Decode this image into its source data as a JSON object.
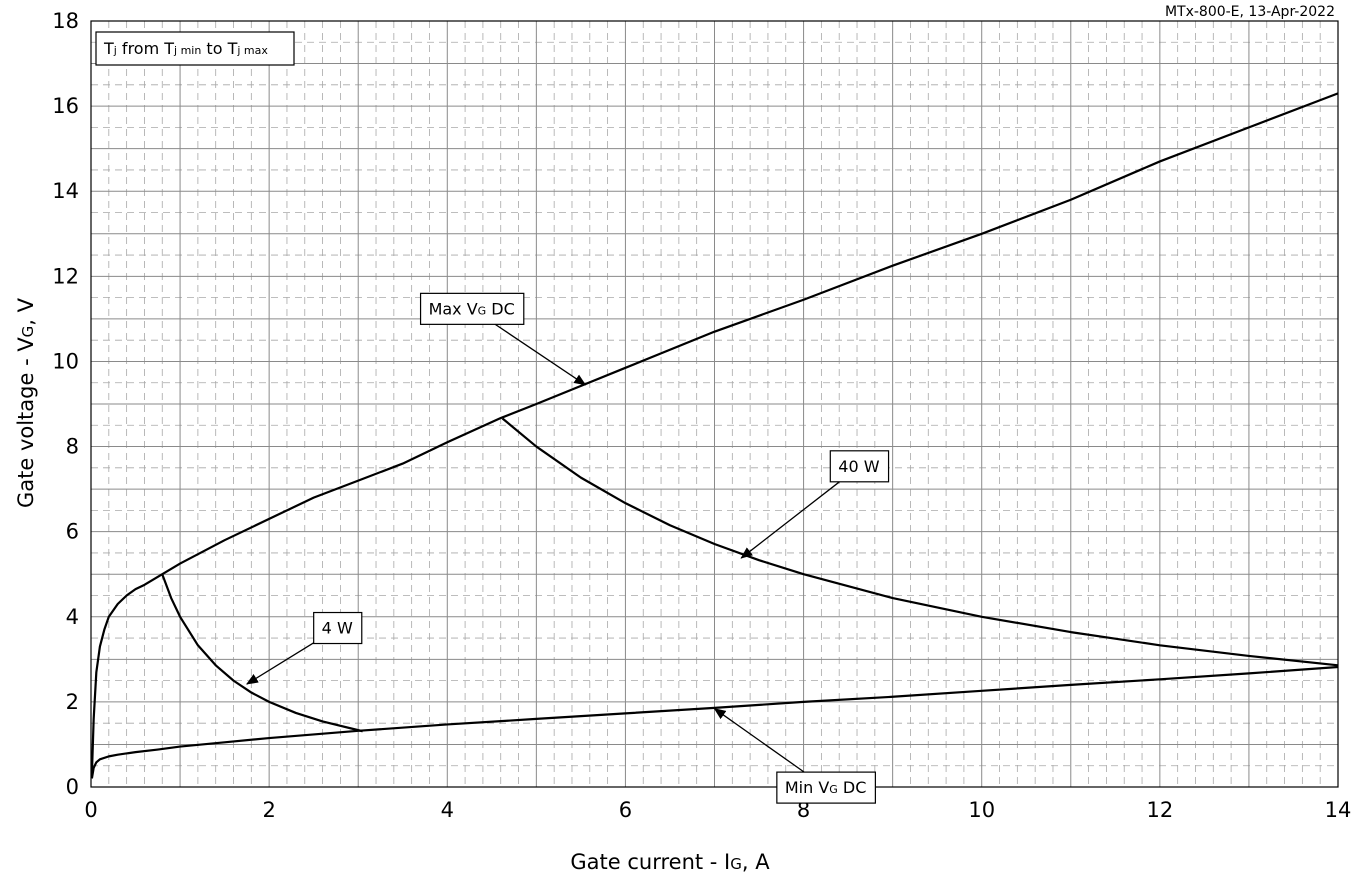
{
  "chart_data": {
    "type": "line",
    "stamp": "MTx-800-E, 13-Apr-2022",
    "xlabel": {
      "main": "Gate current - I",
      "sub": "G",
      "unit": ", A"
    },
    "ylabel": {
      "main": "Gate voltage - V",
      "sub": "G",
      "unit": ", V"
    },
    "xlim": [
      0,
      14
    ],
    "ylim": [
      0,
      18
    ],
    "xticks": [
      0,
      2,
      4,
      6,
      8,
      10,
      12,
      14
    ],
    "yticks": [
      0,
      2,
      4,
      6,
      8,
      10,
      12,
      14,
      16,
      18
    ],
    "grid": "major solid, minor dashed",
    "legend": {
      "p1": "T",
      "s1": "j",
      "p2": " from T",
      "s2": "j min",
      "p3": " to T",
      "s3": "j max"
    },
    "series": [
      {
        "name": "Max V_G DC",
        "x": [
          0.01,
          0.03,
          0.06,
          0.1,
          0.15,
          0.2,
          0.3,
          0.4,
          0.5,
          0.6,
          0.8,
          1.0,
          1.5,
          2.0,
          2.5,
          3.0,
          3.5,
          4.0,
          4.6,
          5.0,
          6.0,
          7.0,
          8.0,
          9.0,
          10.0,
          11.0,
          12.0,
          13.0,
          14.0
        ],
        "y": [
          0.3,
          1.6,
          2.7,
          3.3,
          3.7,
          4.0,
          4.3,
          4.5,
          4.65,
          4.75,
          5.0,
          5.25,
          5.8,
          6.3,
          6.8,
          7.2,
          7.6,
          8.1,
          8.67,
          9.0,
          9.85,
          10.7,
          11.45,
          12.25,
          13.0,
          13.8,
          14.7,
          15.5,
          16.3
        ]
      },
      {
        "name": "Min V_G DC",
        "x": [
          0.01,
          0.03,
          0.06,
          0.1,
          0.2,
          0.3,
          0.5,
          0.75,
          1.0,
          1.5,
          2.0,
          3.0,
          4.0,
          5.0,
          6.0,
          7.0,
          8.0,
          9.0,
          10.0,
          11.0,
          12.0,
          13.0,
          14.0
        ],
        "y": [
          0.2,
          0.45,
          0.58,
          0.65,
          0.72,
          0.76,
          0.82,
          0.88,
          0.95,
          1.05,
          1.15,
          1.32,
          1.47,
          1.6,
          1.73,
          1.86,
          2.0,
          2.12,
          2.26,
          2.4,
          2.53,
          2.67,
          2.82
        ]
      },
      {
        "name": "4 W",
        "x": [
          0.8,
          0.9,
          1.0,
          1.2,
          1.4,
          1.6,
          1.8,
          2.0,
          2.3,
          2.6,
          3.05
        ],
        "y": [
          5.0,
          4.44,
          4.0,
          3.33,
          2.86,
          2.5,
          2.22,
          2.0,
          1.74,
          1.54,
          1.31
        ]
      },
      {
        "name": "40 W",
        "x": [
          4.62,
          5.0,
          5.5,
          6.0,
          6.5,
          7.0,
          7.5,
          8.0,
          9.0,
          10.0,
          11.0,
          12.0,
          13.0,
          14.0
        ],
        "y": [
          8.66,
          8.0,
          7.27,
          6.67,
          6.15,
          5.71,
          5.33,
          5.0,
          4.44,
          4.0,
          3.64,
          3.33,
          3.08,
          2.86
        ]
      }
    ],
    "annotations": [
      {
        "id": "max",
        "main": "Max V",
        "sub": "G",
        "tail": " DC",
        "box": [
          3.7,
          11.6
        ],
        "arrow_to": [
          5.55,
          9.45
        ]
      },
      {
        "id": "min",
        "main": "Min V",
        "sub": "G",
        "tail": " DC",
        "box": [
          7.7,
          0.35
        ],
        "arrow_to": [
          7.0,
          1.84
        ]
      },
      {
        "id": "p4",
        "main": "4 W",
        "sub": "",
        "tail": "",
        "box": [
          2.5,
          4.1
        ],
        "arrow_to": [
          1.75,
          2.42
        ]
      },
      {
        "id": "p40",
        "main": "40 W",
        "sub": "",
        "tail": "",
        "box": [
          8.3,
          7.9
        ],
        "arrow_to": [
          7.3,
          5.38
        ]
      }
    ]
  }
}
